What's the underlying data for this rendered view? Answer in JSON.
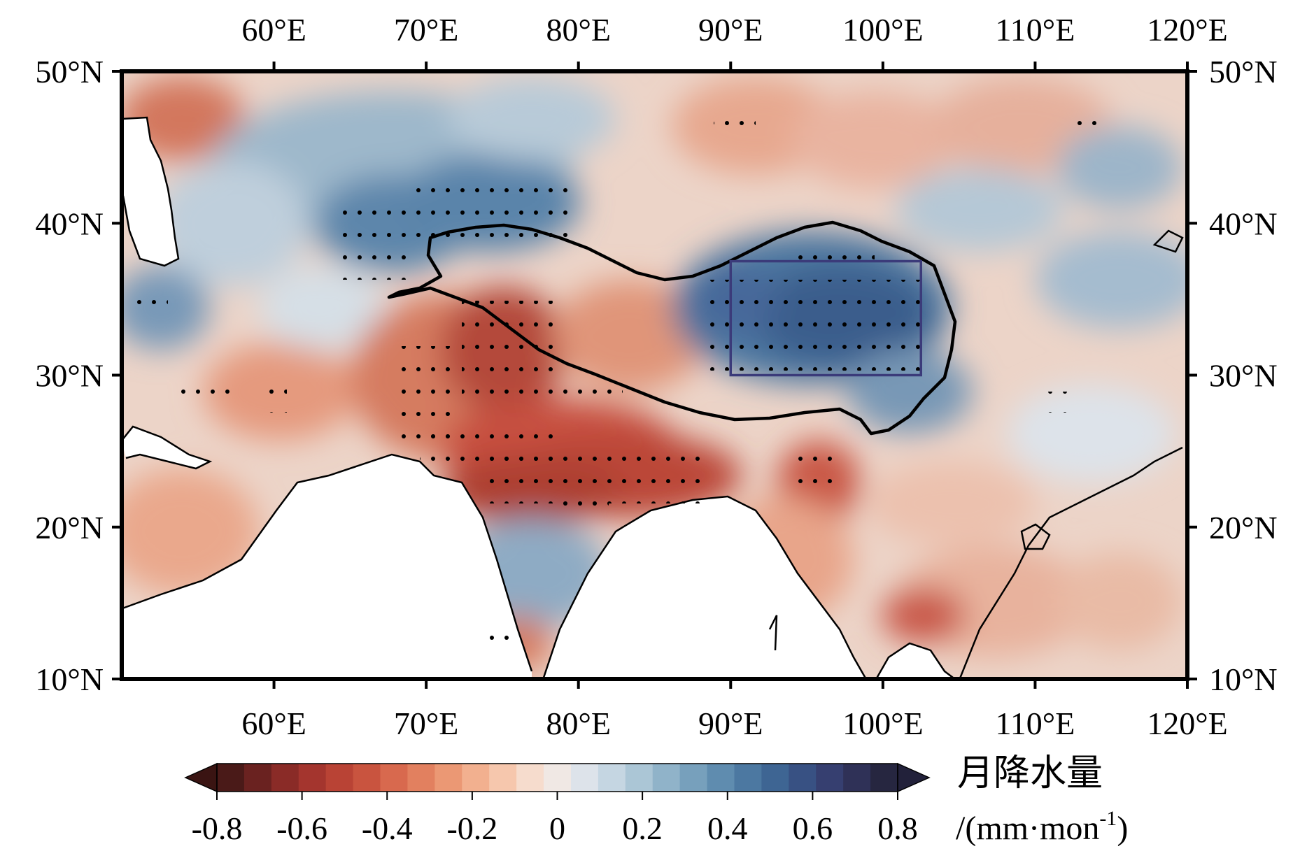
{
  "map": {
    "extent": {
      "lon": [
        50,
        120
      ],
      "lat": [
        10,
        50
      ]
    },
    "top_lon_labels": [
      "60°E",
      "70°E",
      "80°E",
      "90°E",
      "100°E",
      "110°E",
      "120°E"
    ],
    "bottom_lon_labels": [
      "60°E",
      "70°E",
      "80°E",
      "90°E",
      "100°E",
      "110°E",
      "120°E"
    ],
    "left_lat_labels": [
      "50°N",
      "40°N",
      "30°N",
      "20°N",
      "10°N"
    ],
    "right_lat_labels": [
      "50°N",
      "40°N",
      "30°N",
      "20°N",
      "10°N"
    ],
    "lon_ticks": [
      60,
      70,
      80,
      90,
      100,
      110,
      120
    ],
    "lat_ticks": [
      50,
      40,
      30,
      20,
      10
    ],
    "study_box": {
      "lon": [
        90,
        102.5
      ],
      "lat": [
        30,
        37.5
      ]
    }
  },
  "colorbar": {
    "ticks": [
      -0.8,
      -0.6,
      -0.4,
      -0.2,
      0,
      0.2,
      0.4,
      0.6,
      0.8
    ],
    "tick_labels": [
      "-0.8",
      "-0.6",
      "-0.4",
      "-0.2",
      "0",
      "0.2",
      "0.4",
      "0.6",
      "0.8"
    ],
    "range": [
      -0.8,
      0.8
    ],
    "extend": "both",
    "colors": [
      "#4a1a18",
      "#6a2220",
      "#8a2b27",
      "#a4352e",
      "#b94335",
      "#c9543f",
      "#d8694e",
      "#e2805f",
      "#eb9874",
      "#f2b08f",
      "#f6c7ad",
      "#f6dccd",
      "#f0e8e4",
      "#dde3ea",
      "#c5d6e2",
      "#abc6d6",
      "#90b3c9",
      "#77a0bc",
      "#5f8caf",
      "#4c78a1",
      "#3e6593",
      "#385183",
      "#363f70",
      "#2f3157",
      "#262640"
    ],
    "title": "月降水量",
    "unit_prefix": "/(mm·mon",
    "unit_sup": "-1",
    "unit_suffix": ")"
  },
  "colors": {
    "negative": "#c9543f",
    "positive": "#4c78a1",
    "box": "#3b3b7a",
    "plateau": "#000000"
  }
}
